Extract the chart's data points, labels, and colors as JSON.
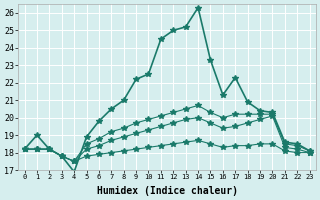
{
  "xlabel": "Humidex (Indice chaleur)",
  "ylabel": "",
  "background_color": "#d6eeee",
  "grid_color": "#ffffff",
  "line_color": "#1a7a6a",
  "xlim": [
    -0.5,
    23.5
  ],
  "ylim": [
    17,
    26.5
  ],
  "xticks": [
    0,
    1,
    2,
    3,
    4,
    5,
    6,
    7,
    8,
    9,
    10,
    11,
    12,
    13,
    14,
    15,
    16,
    17,
    18,
    19,
    20,
    21,
    22,
    23
  ],
  "yticks": [
    17,
    18,
    19,
    20,
    21,
    22,
    23,
    24,
    25,
    26
  ],
  "series": [
    [
      18.2,
      19.0,
      18.2,
      17.8,
      16.9,
      18.9,
      19.8,
      20.5,
      21.0,
      22.2,
      22.5,
      24.5,
      25.0,
      25.2,
      26.3,
      23.3,
      21.3,
      22.3,
      20.9,
      20.4,
      20.3,
      18.6,
      18.5,
      18.1
    ],
    [
      18.2,
      18.2,
      18.2,
      17.8,
      17.5,
      18.5,
      18.8,
      19.2,
      19.4,
      19.7,
      19.9,
      20.1,
      20.3,
      20.5,
      20.7,
      20.3,
      20.0,
      20.2,
      20.2,
      20.2,
      20.2,
      18.5,
      18.4,
      18.1
    ],
    [
      18.2,
      18.2,
      18.2,
      17.8,
      17.5,
      18.2,
      18.4,
      18.7,
      18.9,
      19.1,
      19.3,
      19.5,
      19.7,
      19.9,
      20.0,
      19.7,
      19.4,
      19.5,
      19.7,
      19.9,
      20.1,
      18.3,
      18.2,
      18.0
    ],
    [
      18.2,
      18.2,
      18.2,
      17.8,
      17.5,
      17.8,
      17.9,
      18.0,
      18.1,
      18.2,
      18.3,
      18.4,
      18.5,
      18.6,
      18.7,
      18.5,
      18.3,
      18.4,
      18.4,
      18.5,
      18.5,
      18.1,
      18.0,
      18.0
    ]
  ]
}
